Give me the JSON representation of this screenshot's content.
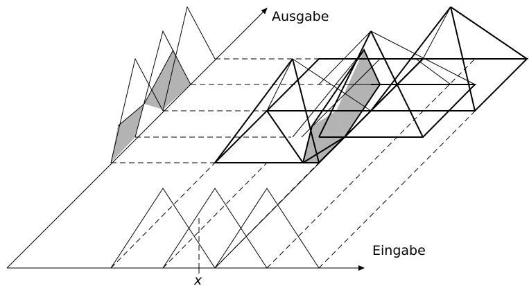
{
  "labels": {
    "output_axis": "Ausgabe",
    "input_axis": "Eingabe",
    "x_marker": "x"
  }
}
